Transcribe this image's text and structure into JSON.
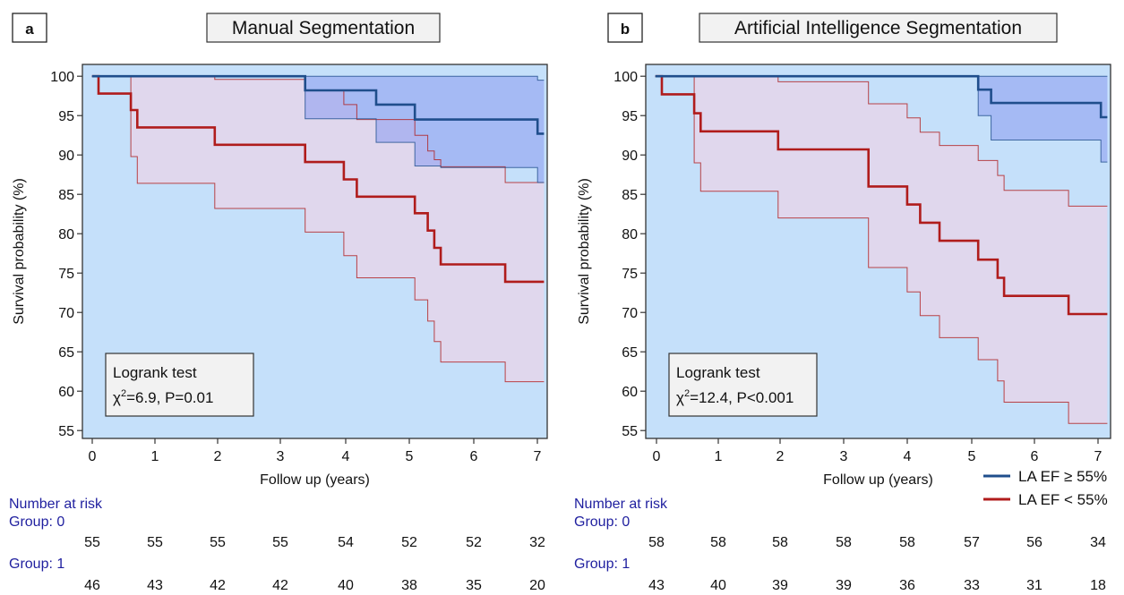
{
  "legend": {
    "items": [
      {
        "label": "LA EF ≥ 55%",
        "color": "#1f4e8c"
      },
      {
        "label": "LA EF < 55%",
        "color": "#b01c1c"
      }
    ]
  },
  "colors": {
    "plot_bg": "#c5e0fa",
    "group0_line": "#1f4e8c",
    "group0_band": "#8fa0f0",
    "group1_line": "#b01c1c",
    "group1_band": "#e8d4e8",
    "risk_label": "#1f1f9f"
  },
  "panels": [
    {
      "panel_label": "a",
      "title": "Manual Segmentation",
      "logrank_title": "Logrank test",
      "logrank_chi_prefix": "χ",
      "logrank_chi_sup": "2",
      "logrank_stat": "=6.9, P=0.01",
      "risk": {
        "header": "Number at risk",
        "group0_label": "Group: 0",
        "group1_label": "Group: 1",
        "group0": [
          "55",
          "55",
          "55",
          "55",
          "54",
          "52",
          "52",
          "32"
        ],
        "group1": [
          "46",
          "43",
          "42",
          "42",
          "40",
          "38",
          "35",
          "20"
        ]
      }
    },
    {
      "panel_label": "b",
      "title": "Artificial Intelligence Segmentation",
      "logrank_title": "Logrank test",
      "logrank_chi_prefix": "χ",
      "logrank_chi_sup": "2",
      "logrank_stat": "=12.4, P<0.001",
      "risk": {
        "header": "Number at risk",
        "group0_label": "Group: 0",
        "group1_label": "Group: 1",
        "group0": [
          "58",
          "58",
          "58",
          "58",
          "58",
          "57",
          "56",
          "34"
        ],
        "group1": [
          "43",
          "40",
          "39",
          "39",
          "36",
          "33",
          "31",
          "18"
        ]
      }
    }
  ],
  "chart_data": [
    {
      "type": "line",
      "step": true,
      "title": "Manual Segmentation",
      "xlabel": "Follow up (years)",
      "ylabel": "Survival probability (%)",
      "xlim": [
        -0.15,
        7.05
      ],
      "ylim": [
        54,
        101.5
      ],
      "xticks": [
        "0",
        "1",
        "2",
        "3",
        "4",
        "5",
        "6",
        "7"
      ],
      "yticks": [
        "55",
        "60",
        "65",
        "70",
        "75",
        "80",
        "85",
        "90",
        "95",
        "100"
      ],
      "series": [
        {
          "name": "LA EF ≥ 55%",
          "x": [
            0,
            3.3,
            4.4,
            5.0,
            6.9,
            7.0
          ],
          "y": [
            100,
            98.2,
            96.4,
            94.5,
            92.7,
            92.7
          ],
          "ci_upper_x": [
            0,
            6.9,
            7.0
          ],
          "ci_upper_y": [
            100,
            99.5,
            99.5
          ],
          "ci_lower_x": [
            0,
            3.3,
            4.4,
            5.0,
            5.4,
            6.9,
            7.0
          ],
          "ci_lower_y": [
            100,
            94.6,
            91.6,
            88.6,
            88.4,
            86.5,
            86.5
          ]
        },
        {
          "name": "LA EF < 55%",
          "x": [
            0.1,
            0.6,
            0.7,
            1.9,
            3.3,
            3.9,
            4.1,
            5.0,
            5.2,
            5.3,
            5.4,
            6.4,
            7.0
          ],
          "y": [
            97.8,
            95.7,
            93.5,
            91.3,
            89.1,
            86.9,
            84.7,
            82.6,
            80.4,
            78.2,
            76.1,
            73.9,
            73.9
          ],
          "ci_upper_x": [
            0,
            1.9,
            3.3,
            3.9,
            4.1,
            5.0,
            5.2,
            5.3,
            5.4,
            6.4,
            7.0
          ],
          "ci_upper_y": [
            100,
            99.6,
            98.2,
            96.4,
            94.5,
            92.5,
            90.5,
            89.4,
            88.5,
            86.5,
            86.5
          ],
          "ci_lower_x": [
            0.1,
            0.6,
            0.7,
            1.9,
            3.3,
            3.9,
            4.1,
            5.0,
            5.2,
            5.3,
            5.4,
            6.4,
            7.0
          ],
          "ci_lower_y": [
            93.6,
            89.8,
            86.4,
            83.2,
            80.2,
            77.2,
            74.4,
            71.6,
            68.9,
            66.3,
            63.7,
            61.2,
            61.2
          ]
        }
      ]
    },
    {
      "type": "line",
      "step": true,
      "title": "Artificial Intelligence Segmentation",
      "xlabel": "Follow up (years)",
      "ylabel": "Survival probability (%)",
      "xlim": [
        -0.15,
        7.05
      ],
      "ylim": [
        54,
        101.5
      ],
      "xticks": [
        "0",
        "1",
        "2",
        "3",
        "4",
        "5",
        "6",
        "7"
      ],
      "yticks": [
        "55",
        "60",
        "65",
        "70",
        "75",
        "80",
        "85",
        "90",
        "95",
        "100"
      ],
      "series": [
        {
          "name": "LA EF ≥ 55%",
          "x": [
            0,
            5.0,
            5.2,
            6.9,
            7.0
          ],
          "y": [
            100,
            98.3,
            96.6,
            94.8,
            94.8
          ],
          "ci_upper_x": [
            0,
            7.0
          ],
          "ci_upper_y": [
            100,
            100
          ],
          "ci_lower_x": [
            0,
            5.0,
            5.2,
            6.9,
            7.0
          ],
          "ci_lower_y": [
            100,
            95.0,
            91.9,
            89.1,
            89.1
          ]
        },
        {
          "name": "LA EF < 55%",
          "x": [
            0.1,
            0.6,
            0.7,
            1.9,
            3.3,
            3.9,
            4.1,
            4.4,
            5.0,
            5.3,
            5.4,
            6.4,
            7.0
          ],
          "y": [
            97.7,
            95.3,
            93.0,
            90.7,
            86.0,
            83.7,
            81.4,
            79.1,
            76.7,
            74.4,
            72.1,
            69.8,
            69.8
          ],
          "ci_upper_x": [
            0,
            1.9,
            3.3,
            3.9,
            4.1,
            4.4,
            5.0,
            5.3,
            5.4,
            6.4,
            7.0
          ],
          "ci_upper_y": [
            100,
            99.3,
            96.5,
            94.7,
            92.9,
            91.2,
            89.3,
            87.4,
            85.5,
            83.5,
            83.5
          ],
          "ci_lower_x": [
            0.1,
            0.6,
            0.7,
            1.9,
            3.3,
            3.9,
            4.1,
            4.4,
            5.0,
            5.3,
            5.4,
            6.4,
            7.0
          ],
          "ci_lower_y": [
            93.2,
            89.0,
            85.4,
            82.0,
            75.7,
            72.6,
            69.6,
            66.8,
            64.0,
            61.3,
            58.6,
            55.9,
            55.9
          ]
        }
      ]
    }
  ]
}
